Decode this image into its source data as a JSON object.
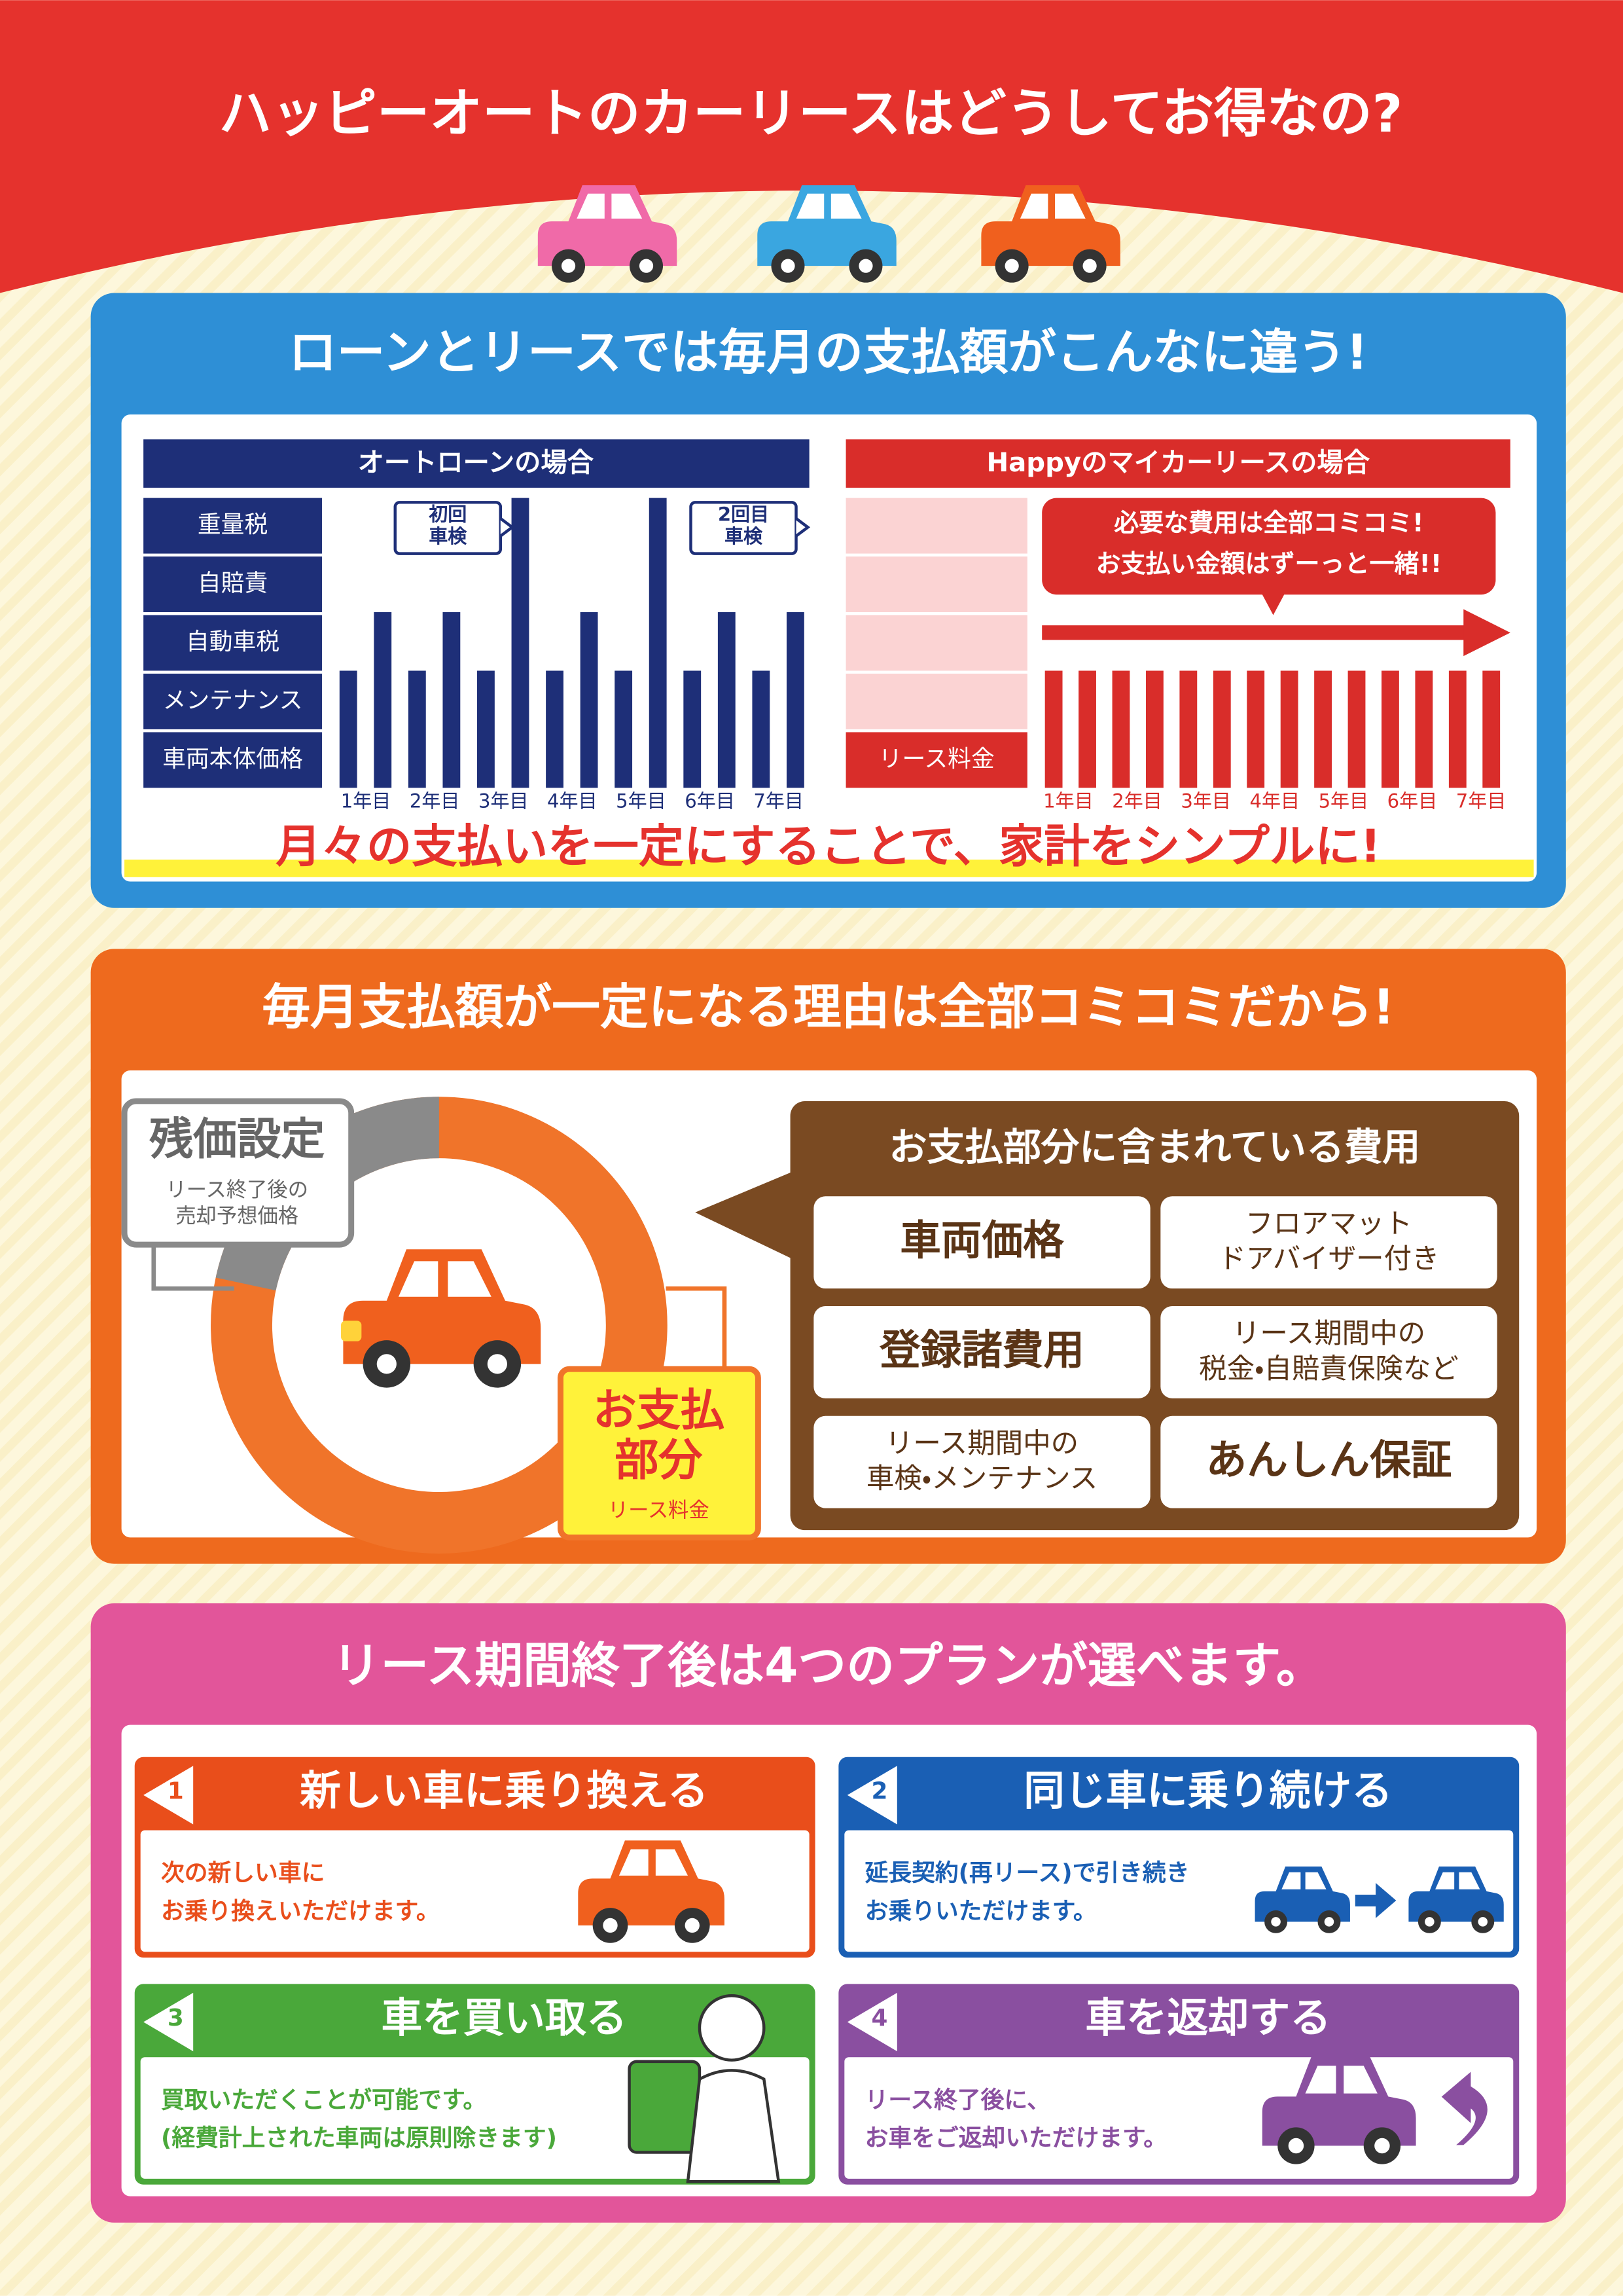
{
  "header": {
    "title": "ハッピーオートのカーリースはどうしてお得なの?"
  },
  "section1": {
    "title": "ローンとリースでは毎月の支払額がこんなに違う!",
    "loan": {
      "heading": "オートローンの場合",
      "rows": [
        "重量税",
        "自賠責",
        "自動車税",
        "メンテナンス",
        "車両本体価格"
      ],
      "callouts": [
        [
          "初回",
          "車検"
        ],
        [
          "2回目",
          "車検"
        ]
      ],
      "years": [
        "1年目",
        "2年目",
        "3年目",
        "4年目",
        "5年目",
        "6年目",
        "7年目"
      ]
    },
    "lease": {
      "heading": "Happyのマイカーリースの場合",
      "fee_label": "リース料金",
      "callout": [
        "必要な費用は全部コミコミ!",
        "お支払い金額はずーっと一緒!!"
      ],
      "years": [
        "1年目",
        "2年目",
        "3年目",
        "4年目",
        "5年目",
        "6年目",
        "7年目"
      ]
    },
    "tagline": "月々の支払いを一定にすることで、家計をシンプルに!"
  },
  "section2": {
    "title": "毎月支払額が一定になる理由は全部コミコミだから!",
    "residual": {
      "title": "残価設定",
      "note": [
        "リース終了後の",
        "売却予想価格"
      ]
    },
    "payment": {
      "title": [
        "お支払",
        "部分"
      ],
      "note": "リース料金"
    },
    "costs": {
      "title": "お支払部分に含まれている費用",
      "items": [
        [
          "車両価格"
        ],
        [
          "フロアマット",
          "ドアバイザー付き"
        ],
        [
          "登録諸費用"
        ],
        [
          "リース期間中の",
          "税金・自賠責保険など"
        ],
        [
          "リース期間中の",
          "車検・メンテナンス"
        ],
        [
          "あんしん保証"
        ]
      ]
    }
  },
  "section3": {
    "title": "リース期間終了後は4つのプランが選べます。",
    "plans": [
      {
        "number": "1",
        "title": "新しい車に乗り換える",
        "text": [
          "次の新しい車に",
          "お乗り換えいただけます。"
        ]
      },
      {
        "number": "2",
        "title": "同じ車に乗り続ける",
        "text": [
          "延長契約(再リース)で引き続き",
          "お乗りいただけます。"
        ]
      },
      {
        "number": "3",
        "title": "車を買い取る",
        "text": [
          "買取いただくことが可能です。",
          "(経費計上された車両は原則除きます)"
        ]
      },
      {
        "number": "4",
        "title": "車を返却する",
        "text": [
          "リース終了後に、",
          "お車をご返却いただけます。"
        ]
      }
    ]
  }
}
